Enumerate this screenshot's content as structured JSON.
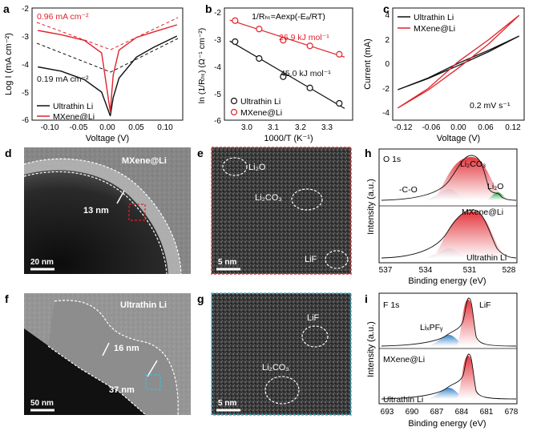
{
  "panels": {
    "a": {
      "letter": "a",
      "ylabel": "Log I (mA cm⁻²)",
      "xlabel": "Voltage (V)",
      "yticks": [
        "-2",
        "-3",
        "-4",
        "-5",
        "-6"
      ],
      "xticks": [
        "-0.10",
        "-0.05",
        "0.00",
        "0.05",
        "0.10"
      ],
      "anno_red": "0.96 mA cm⁻²",
      "anno_black": "0.19 mA cm⁻²",
      "legend": [
        "Ultrathin Li",
        "MXene@Li"
      ]
    },
    "b": {
      "letter": "b",
      "equation": "1/Rₕₜ=Aexp(-Eₐ/RT)",
      "ylabel": "ln (1/Rₕₜ) (Ω⁻¹ cm⁻²)",
      "xlabel": "1000/T (K⁻¹)",
      "yticks": [
        "-2",
        "-3",
        "-4",
        "-5",
        "-6"
      ],
      "xticks": [
        "3.0",
        "3.1",
        "3.2",
        "3.3"
      ],
      "ea_red": "26.9 kJ mol⁻¹",
      "ea_black": "45.0 kJ mol⁻¹",
      "legend": [
        "Ultrathin Li",
        "MXene@Li"
      ]
    },
    "c": {
      "letter": "c",
      "ylabel": "Current (mA)",
      "xlabel": "Voltage (V)",
      "yticks": [
        "4",
        "2",
        "0",
        "-2",
        "-4"
      ],
      "xticks": [
        "-0.12",
        "-0.06",
        "0.00",
        "0.06",
        "0.12"
      ],
      "scan_rate": "0.2 mV s⁻¹",
      "legend": [
        "Ultrathin Li",
        "MXene@Li"
      ]
    },
    "d": {
      "letter": "d",
      "label": "MXene@Li",
      "thickness": "13 nm",
      "scale": "20 nm"
    },
    "e": {
      "letter": "e",
      "labels": [
        "Li₂O",
        "Li₂CO₃",
        "LiF"
      ],
      "scale": "5 nm"
    },
    "f": {
      "letter": "f",
      "label": "Ultrathin Li",
      "thickness1": "16 nm",
      "thickness2": "37 nm",
      "scale": "50 nm"
    },
    "g": {
      "letter": "g",
      "labels": [
        "LiF",
        "Li₂CO₃"
      ],
      "scale": "5 nm"
    },
    "h": {
      "letter": "h",
      "core": "O 1s",
      "peaks": [
        "Li₂CO₃",
        "-C-O",
        "Li₂O"
      ],
      "top_sample": "MXene@Li",
      "bottom_sample": "Ultrathin Li",
      "ylabel": "Intensity (a.u.)",
      "xlabel": "Binding energy (eV)",
      "xticks": [
        "537",
        "534",
        "531",
        "528"
      ]
    },
    "i": {
      "letter": "i",
      "core": "F 1s",
      "peaks": [
        "LiF",
        "LiₓPFᵧ"
      ],
      "top_sample": "MXene@Li",
      "bottom_sample": "Ultrathin Li",
      "ylabel": "Intensity (a.u.)",
      "xlabel": "Binding energy (eV)",
      "xticks": [
        "693",
        "690",
        "687",
        "684",
        "681",
        "678"
      ]
    }
  },
  "colors": {
    "red": "#e0222a",
    "black": "#111111",
    "blue": "#2f7fc4",
    "green": "#2aa84a",
    "pink": "#f08a8a",
    "red_border": "#d63a3a",
    "cyan_border": "#3cc0e0"
  },
  "chart_data": [
    {
      "type": "line",
      "title": "a",
      "xlabel": "Voltage (V)",
      "ylabel": "Log I (mA cm⁻²)",
      "xlim": [
        -0.13,
        0.13
      ],
      "ylim": [
        -6,
        -2
      ],
      "series": [
        {
          "name": "Ultrathin Li",
          "x": [
            -0.12,
            -0.08,
            -0.04,
            -0.01,
            0.005,
            0.01,
            0.02,
            0.05,
            0.08,
            0.12
          ],
          "values": [
            -4.1,
            -4.25,
            -4.55,
            -5.0,
            -5.85,
            -5.2,
            -4.5,
            -3.75,
            -3.4,
            -3.0
          ]
        },
        {
          "name": "MXene@Li",
          "x": [
            -0.12,
            -0.08,
            -0.04,
            -0.01,
            0.005,
            0.01,
            0.02,
            0.05,
            0.08,
            0.12
          ],
          "values": [
            -2.8,
            -2.95,
            -3.15,
            -3.6,
            -5.7,
            -4.4,
            -3.5,
            -3.05,
            -2.85,
            -2.6
          ]
        }
      ],
      "annotations": [
        "0.96 mA cm⁻²",
        "0.19 mA cm⁻²"
      ]
    },
    {
      "type": "scatter",
      "title": "1/Rₕₜ=Aexp(-Eₐ/RT)",
      "xlabel": "1000/T (K⁻¹)",
      "ylabel": "ln (1/Rₕₜ) (Ω⁻¹ cm⁻²)",
      "xlim": [
        2.92,
        3.4
      ],
      "ylim": [
        -6,
        -2
      ],
      "series": [
        {
          "name": "Ultrathin Li",
          "x": [
            2.96,
            3.05,
            3.14,
            3.24,
            3.35
          ],
          "values": [
            -3.2,
            -3.8,
            -4.45,
            -4.85,
            -5.4
          ]
        },
        {
          "name": "MXene@Li",
          "x": [
            2.96,
            3.05,
            3.14,
            3.24,
            3.35
          ],
          "values": [
            -2.45,
            -2.75,
            -3.15,
            -3.35,
            -3.65
          ]
        }
      ],
      "annotations": [
        "26.9 kJ mol⁻¹",
        "45.0 kJ mol⁻¹"
      ]
    },
    {
      "type": "line",
      "xlabel": "Voltage (V)",
      "ylabel": "Current (mA)",
      "xlim": [
        -0.13,
        0.13
      ],
      "ylim": [
        -4.6,
        4.6
      ],
      "series": [
        {
          "name": "Ultrathin Li",
          "x": [
            -0.12,
            -0.06,
            0.0,
            0.06,
            0.12
          ],
          "values": [
            -2.1,
            -1.1,
            0.0,
            1.1,
            2.3
          ]
        },
        {
          "name": "MXene@Li",
          "x": [
            -0.12,
            -0.06,
            0.0,
            0.06,
            0.12
          ],
          "values": [
            -3.6,
            -1.9,
            0.0,
            1.9,
            4.0
          ]
        }
      ],
      "annotations": [
        "0.2 mV s⁻¹"
      ]
    }
  ]
}
